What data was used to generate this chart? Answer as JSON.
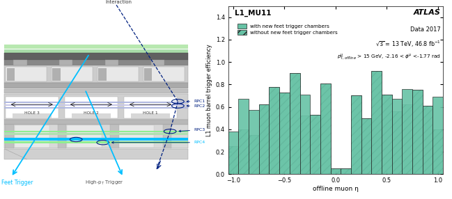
{
  "hist_title": "L1_MU11",
  "atlas_label": "ATLAS",
  "data_label": "Data 2017",
  "ylabel": "L1 muon barrel trigger efficiency",
  "xlabel": "offline muon η",
  "legend1": "with new feet trigger chambers",
  "legend2": "without new feet trigger chambers",
  "xlim": [
    -1.05,
    1.05
  ],
  "ylim": [
    0,
    1.5
  ],
  "yticks": [
    0,
    0.2,
    0.4,
    0.6,
    0.8,
    1.0,
    1.2,
    1.4
  ],
  "xticks": [
    -1.0,
    -0.5,
    0.0,
    0.5,
    1.0
  ],
  "color_solid": "#66c2a5",
  "bin_edges": [
    -1.05,
    -0.95,
    -0.85,
    -0.75,
    -0.65,
    -0.55,
    -0.45,
    -0.35,
    -0.25,
    -0.15,
    -0.05,
    0.05,
    0.15,
    0.25,
    0.35,
    0.45,
    0.55,
    0.65,
    0.75,
    0.85,
    0.95,
    1.05
  ],
  "values_solid": [
    0.38,
    0.67,
    0.57,
    0.62,
    0.78,
    0.73,
    0.9,
    0.71,
    0.53,
    0.81,
    0.05,
    0.05,
    0.7,
    0.5,
    0.92,
    0.71,
    0.67,
    0.76,
    0.75,
    0.61,
    0.69
  ],
  "values_hatch": [
    0.25,
    0.4,
    0.35,
    0.62,
    0.78,
    0.73,
    0.9,
    0.52,
    0.53,
    0.81,
    0.05,
    0.05,
    0.7,
    0.5,
    0.92,
    0.71,
    0.56,
    0.62,
    0.75,
    0.61,
    0.4
  ],
  "sketch_bg": "#ffffff",
  "rpc4_color": "#00bfff",
  "rpc3_color": "#90ee90",
  "feet_trigger_color": "#00bfff",
  "interaction_text": "Interaction",
  "feet_text": "Feet Trigger",
  "highpt_text": "High-p",
  "rpc1_label": "RPC1",
  "rpc2_label": "RPC2",
  "rpc3_label": "RPC3",
  "rpc4_label": "RPC4",
  "hole1_label": "HOLE 1",
  "hole2_label": "HOLE 2",
  "hole3_label": "HOLE 3"
}
